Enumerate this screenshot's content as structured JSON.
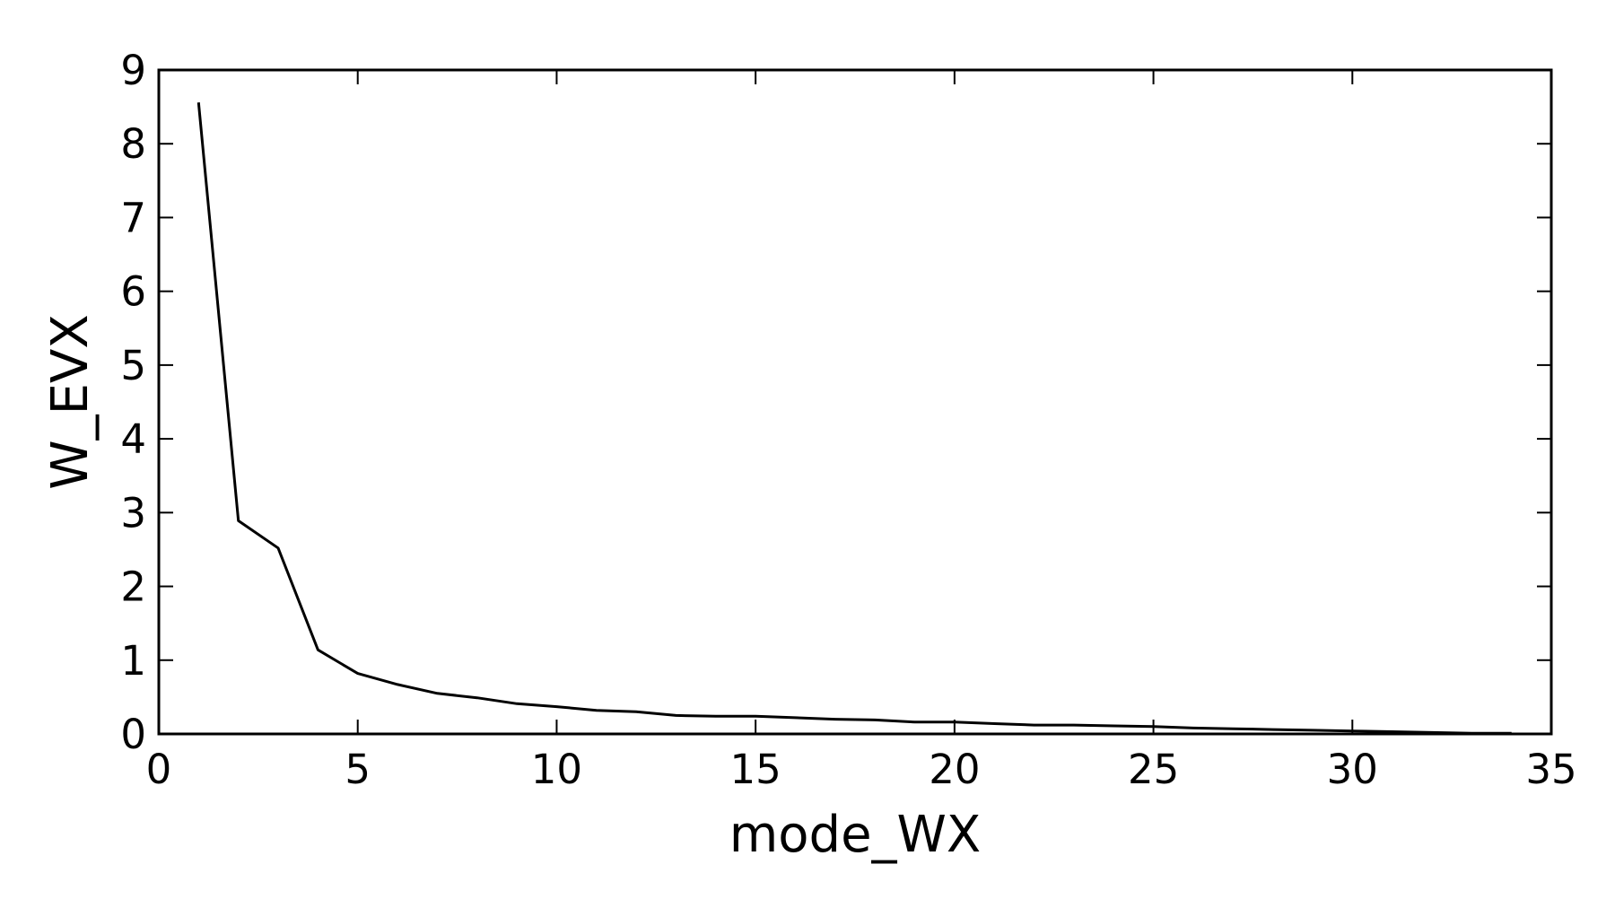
{
  "chart_data": {
    "type": "line",
    "title": "",
    "xlabel": "mode_WX",
    "ylabel": "W_EVX",
    "xlim": [
      0,
      35
    ],
    "ylim": [
      0,
      9
    ],
    "xticks": [
      0,
      5,
      10,
      15,
      20,
      25,
      30,
      35
    ],
    "yticks": [
      0,
      1,
      2,
      3,
      4,
      5,
      6,
      7,
      8,
      9
    ],
    "xtick_labels": [
      "0",
      "5",
      "10",
      "15",
      "20",
      "25",
      "30",
      "35"
    ],
    "ytick_labels": [
      "0",
      "1",
      "2",
      "3",
      "4",
      "5",
      "6",
      "7",
      "8",
      "9"
    ],
    "grid": false,
    "legend": "none",
    "series": [
      {
        "color": "#000000",
        "x": [
          1,
          2,
          3,
          4,
          5,
          6,
          7,
          8,
          9,
          10,
          11,
          12,
          13,
          14,
          15,
          16,
          17,
          18,
          19,
          20,
          21,
          22,
          23,
          24,
          25,
          26,
          27,
          28,
          29,
          30,
          31,
          32,
          33,
          34
        ],
        "y": [
          8.56,
          2.89,
          2.52,
          1.14,
          0.82,
          0.67,
          0.55,
          0.49,
          0.41,
          0.37,
          0.32,
          0.3,
          0.25,
          0.24,
          0.24,
          0.22,
          0.2,
          0.19,
          0.16,
          0.16,
          0.14,
          0.12,
          0.12,
          0.11,
          0.1,
          0.08,
          0.07,
          0.06,
          0.05,
          0.04,
          0.03,
          0.02,
          0.01,
          0.01
        ]
      }
    ]
  }
}
